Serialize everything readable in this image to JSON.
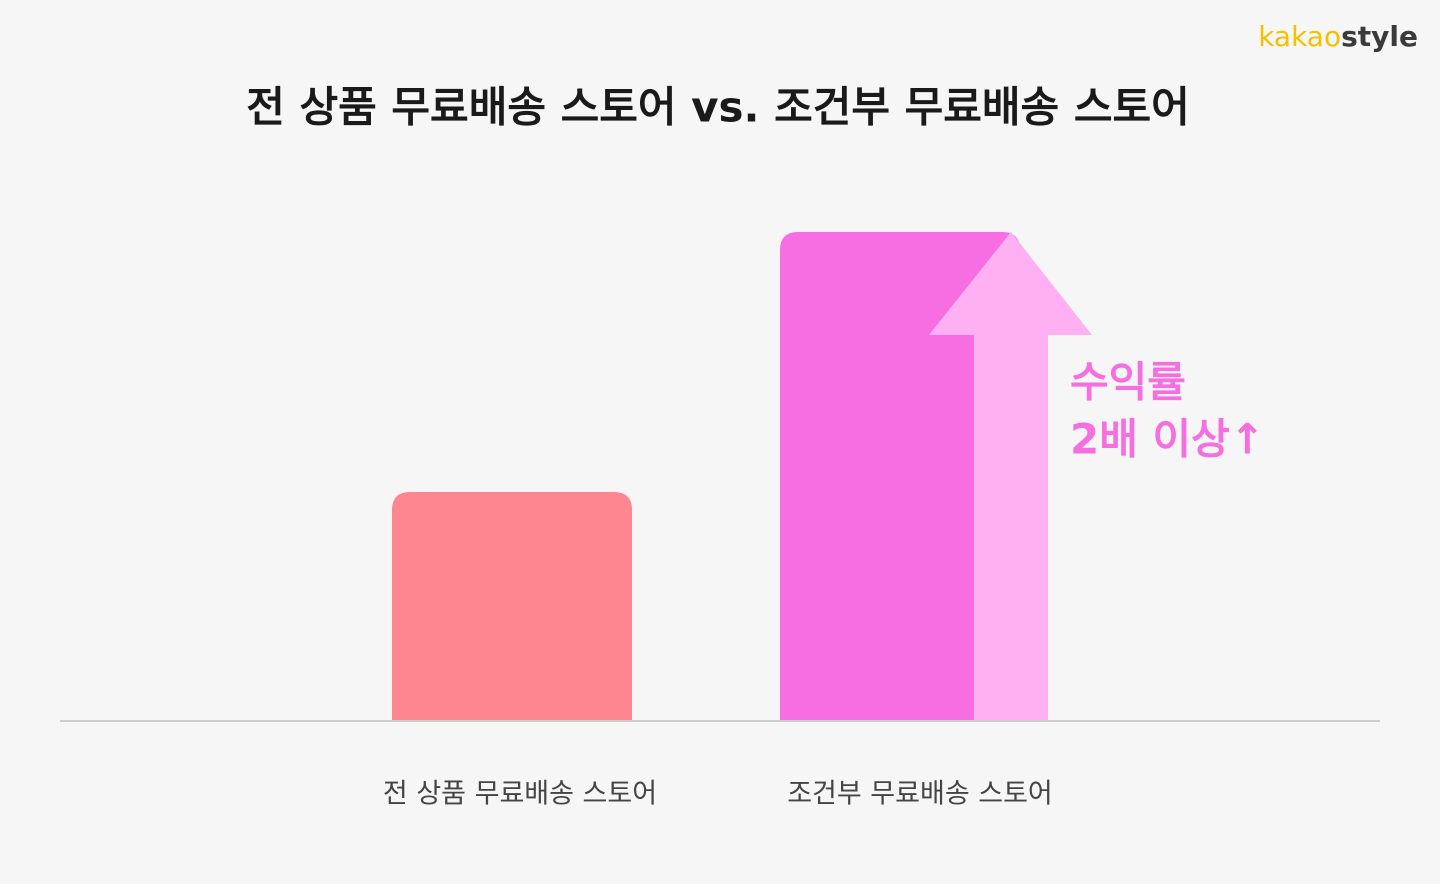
{
  "brand": [
    "kakao",
    "style"
  ],
  "chart_data": {
    "type": "bar",
    "title": "전 상품 무료배송 스토어 vs. 조건부 무료배송 스토어",
    "categories": [
      "전 상품 무료배송 스토어",
      "조건부 무료배송 스토어"
    ],
    "values": [
      1,
      2.14
    ],
    "colors": [
      "#fe8691",
      "#f76ee3"
    ],
    "annotation": [
      "수익률",
      "2배 이상↑"
    ]
  }
}
